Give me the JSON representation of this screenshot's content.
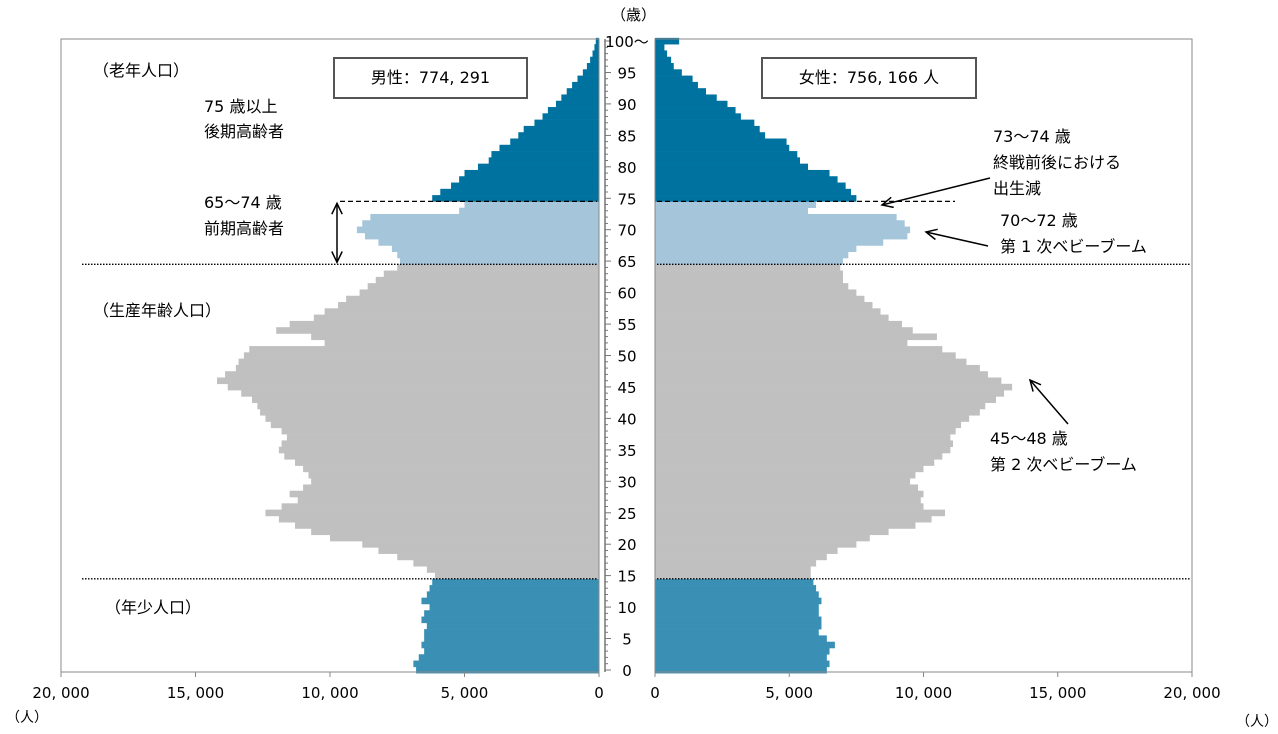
{
  "chart_data": {
    "type": "bar",
    "subtype": "population-pyramid",
    "title": "",
    "y_unit": "（歳）",
    "x_unit_left": "（人）",
    "x_unit_right": "（人）",
    "x_ticks_left": [
      "20, 000",
      "15, 000",
      "10, 000",
      "5, 000",
      "0"
    ],
    "x_ticks_right": [
      "0",
      "5, 000",
      "10, 000",
      "15, 000",
      "20, 000"
    ],
    "age_ticks": [
      "0",
      "5",
      "10",
      "15",
      "20",
      "25",
      "30",
      "35",
      "40",
      "45",
      "50",
      "55",
      "60",
      "65",
      "70",
      "75",
      "80",
      "85",
      "90",
      "95",
      "100〜"
    ],
    "xlim": [
      0,
      20000
    ],
    "ylim": [
      0,
      100
    ],
    "colors": {
      "old_late": "#00729f",
      "old_early": "#a5c5da",
      "working": "#c0c0c0",
      "young": "#3a8fb5"
    },
    "ages": [
      0,
      1,
      2,
      3,
      4,
      5,
      6,
      7,
      8,
      9,
      10,
      11,
      12,
      13,
      14,
      15,
      16,
      17,
      18,
      19,
      20,
      21,
      22,
      23,
      24,
      25,
      26,
      27,
      28,
      29,
      30,
      31,
      32,
      33,
      34,
      35,
      36,
      37,
      38,
      39,
      40,
      41,
      42,
      43,
      44,
      45,
      46,
      47,
      48,
      49,
      50,
      51,
      52,
      53,
      54,
      55,
      56,
      57,
      58,
      59,
      60,
      61,
      62,
      63,
      64,
      65,
      66,
      67,
      68,
      69,
      70,
      71,
      72,
      73,
      74,
      75,
      76,
      77,
      78,
      79,
      80,
      81,
      82,
      83,
      84,
      85,
      86,
      87,
      88,
      89,
      90,
      91,
      92,
      93,
      94,
      95,
      96,
      97,
      98,
      99,
      100
    ],
    "series": [
      {
        "name": "男性",
        "values": [
          6800,
          6900,
          6700,
          6500,
          6600,
          6500,
          6500,
          6400,
          6600,
          6500,
          6300,
          6600,
          6400,
          6300,
          6200,
          6100,
          6400,
          6900,
          7500,
          8200,
          8800,
          10000,
          10700,
          11300,
          11900,
          12400,
          11800,
          11200,
          11500,
          11000,
          10700,
          10800,
          11000,
          11300,
          11700,
          11900,
          11800,
          11600,
          11800,
          12200,
          12400,
          12600,
          12700,
          12900,
          13300,
          13800,
          14200,
          13900,
          13500,
          13400,
          13200,
          13000,
          10200,
          10700,
          12000,
          11500,
          10600,
          10200,
          9700,
          9400,
          8900,
          8600,
          8300,
          8000,
          7500,
          7400,
          7500,
          7700,
          8200,
          8700,
          9000,
          8800,
          8500,
          5200,
          5000,
          6200,
          5900,
          5500,
          5200,
          5000,
          4500,
          4100,
          4000,
          3700,
          3300,
          3000,
          2800,
          2400,
          2100,
          1900,
          1600,
          1400,
          1200,
          1000,
          800,
          600,
          450,
          330,
          240,
          170,
          120
        ]
      },
      {
        "name": "女性",
        "values": [
          6400,
          6500,
          6400,
          6500,
          6700,
          6400,
          6100,
          6200,
          6200,
          6100,
          6100,
          6200,
          6100,
          6000,
          5900,
          5800,
          5800,
          6000,
          6400,
          6800,
          7500,
          8000,
          8700,
          9700,
          10300,
          10800,
          10000,
          9900,
          10000,
          9800,
          9500,
          9700,
          10000,
          10400,
          10700,
          11000,
          11100,
          11000,
          11200,
          11400,
          11700,
          12100,
          12300,
          12700,
          13000,
          13300,
          12900,
          12400,
          12100,
          11600,
          11200,
          10700,
          9400,
          10500,
          9600,
          9200,
          8700,
          8400,
          8100,
          7800,
          7500,
          7200,
          7000,
          7000,
          6900,
          7000,
          7200,
          7500,
          8500,
          9400,
          9500,
          9300,
          9000,
          5700,
          6000,
          7500,
          7300,
          7100,
          6800,
          6500,
          5700,
          5400,
          5300,
          5000,
          4900,
          4100,
          3900,
          3700,
          3200,
          3000,
          2700,
          2300,
          1900,
          1600,
          1400,
          1000,
          700,
          600,
          450,
          350,
          900
        ]
      }
    ],
    "male_box": "男性：774, 291",
    "female_box": "女性：756, 166 人",
    "group_old": "（老年人口）",
    "group_working": "（生産年齢人口）",
    "group_young": "（年少人口）",
    "old_late": [
      "75 歳以上",
      "後期高齢者"
    ],
    "old_early": [
      "65〜74 歳",
      "前期高齢者"
    ],
    "ann_birth_dip": [
      "73〜74 歳",
      "終戦前後における",
      "出生減"
    ],
    "ann_boom1": [
      "70〜72 歳",
      "第 1 次ベビーブーム"
    ],
    "ann_boom2": [
      "45〜48 歳",
      "第 2 次ベビーブーム"
    ]
  }
}
